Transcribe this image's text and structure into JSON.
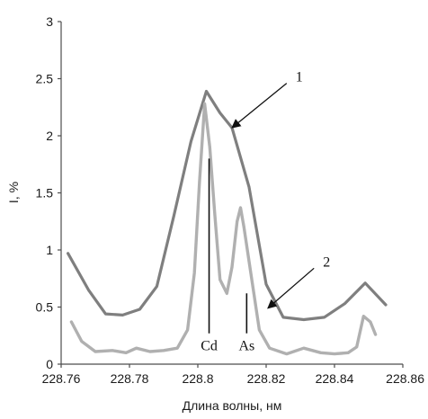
{
  "chart_data": {
    "type": "line",
    "xlabel": "Длина волны, нм",
    "ylabel": "I, %",
    "xlim": [
      228.76,
      228.86
    ],
    "ylim": [
      0,
      3
    ],
    "x_ticks": [
      "228.76",
      "228.78",
      "228.8",
      "228.82",
      "228.84",
      "228.86"
    ],
    "y_ticks": [
      "0",
      "0.5",
      "1",
      "1.5",
      "2",
      "2.5",
      "3"
    ],
    "grid": false,
    "series": [
      {
        "name": "1",
        "color": "#7f7f7f",
        "points": [
          [
            228.762,
            0.97
          ],
          [
            228.768,
            0.65
          ],
          [
            228.773,
            0.44
          ],
          [
            228.778,
            0.43
          ],
          [
            228.783,
            0.48
          ],
          [
            228.788,
            0.68
          ],
          [
            228.793,
            1.3
          ],
          [
            228.798,
            1.95
          ],
          [
            228.8025,
            2.39
          ],
          [
            228.8065,
            2.2
          ],
          [
            228.81,
            2.07
          ],
          [
            228.815,
            1.55
          ],
          [
            228.82,
            0.7
          ],
          [
            228.825,
            0.41
          ],
          [
            228.831,
            0.39
          ],
          [
            228.837,
            0.41
          ],
          [
            228.843,
            0.53
          ],
          [
            228.849,
            0.71
          ],
          [
            228.855,
            0.52
          ]
        ]
      },
      {
        "name": "2",
        "color": "#b0b0b0",
        "points": [
          [
            228.763,
            0.37
          ],
          [
            228.766,
            0.2
          ],
          [
            228.77,
            0.11
          ],
          [
            228.775,
            0.12
          ],
          [
            228.779,
            0.1
          ],
          [
            228.782,
            0.14
          ],
          [
            228.786,
            0.11
          ],
          [
            228.79,
            0.12
          ],
          [
            228.794,
            0.14
          ],
          [
            228.797,
            0.3
          ],
          [
            228.799,
            0.8
          ],
          [
            228.8005,
            1.6
          ],
          [
            228.802,
            2.28
          ],
          [
            228.8035,
            1.9
          ],
          [
            228.805,
            1.3
          ],
          [
            228.8065,
            0.74
          ],
          [
            228.8085,
            0.62
          ],
          [
            228.81,
            0.85
          ],
          [
            228.8115,
            1.25
          ],
          [
            228.8125,
            1.37
          ],
          [
            228.8135,
            1.2
          ],
          [
            228.815,
            0.9
          ],
          [
            228.8165,
            0.6
          ],
          [
            228.818,
            0.3
          ],
          [
            228.821,
            0.14
          ],
          [
            228.826,
            0.09
          ],
          [
            228.831,
            0.14
          ],
          [
            228.836,
            0.1
          ],
          [
            228.84,
            0.09
          ],
          [
            228.844,
            0.1
          ],
          [
            228.8465,
            0.15
          ],
          [
            228.8485,
            0.42
          ],
          [
            228.8505,
            0.37
          ],
          [
            228.852,
            0.26
          ]
        ]
      }
    ],
    "annotations": [
      {
        "text": "1",
        "kind": "arrow-label",
        "from": [
          228.826,
          2.46
        ],
        "to": [
          228.81,
          2.07
        ]
      },
      {
        "text": "2",
        "kind": "arrow-label",
        "from": [
          228.834,
          0.84
        ],
        "to": [
          228.8205,
          0.49
        ]
      },
      {
        "text": "Cd",
        "kind": "line-marker",
        "x": 228.8033,
        "y_top": 1.8,
        "y_bottom": 0.27
      },
      {
        "text": "As",
        "kind": "line-marker",
        "x": 228.8143,
        "y_top": 0.62,
        "y_bottom": 0.27
      }
    ]
  }
}
